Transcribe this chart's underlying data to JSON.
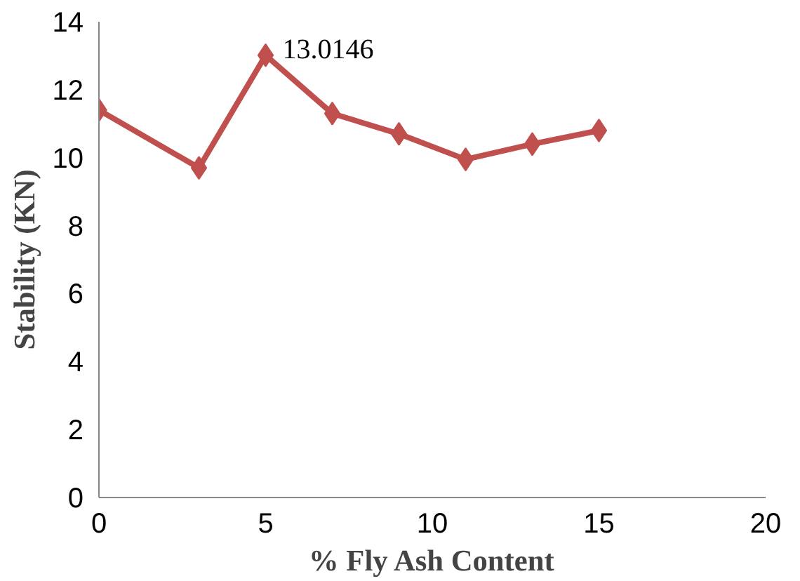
{
  "chart_data": {
    "type": "line",
    "xlabel": "% Fly Ash Content",
    "ylabel": "Stability (KN)",
    "x": [
      0,
      3,
      5,
      7,
      9,
      11,
      13,
      15
    ],
    "series": [
      {
        "color": "#c0504d",
        "values": [
          11.4,
          9.7,
          13.0146,
          11.3,
          10.7,
          9.95,
          10.4,
          10.8
        ],
        "value_labels": [
          null,
          null,
          "13.0146",
          null,
          null,
          null,
          null,
          null
        ]
      }
    ],
    "xlim": [
      0,
      20
    ],
    "xticks": [
      0,
      5,
      10,
      15,
      20
    ],
    "ylim": [
      0,
      14
    ],
    "yticks": [
      0,
      2,
      4,
      6,
      8,
      10,
      12,
      14
    ],
    "grid": false,
    "marker": "diamond",
    "line_style": "solid"
  }
}
